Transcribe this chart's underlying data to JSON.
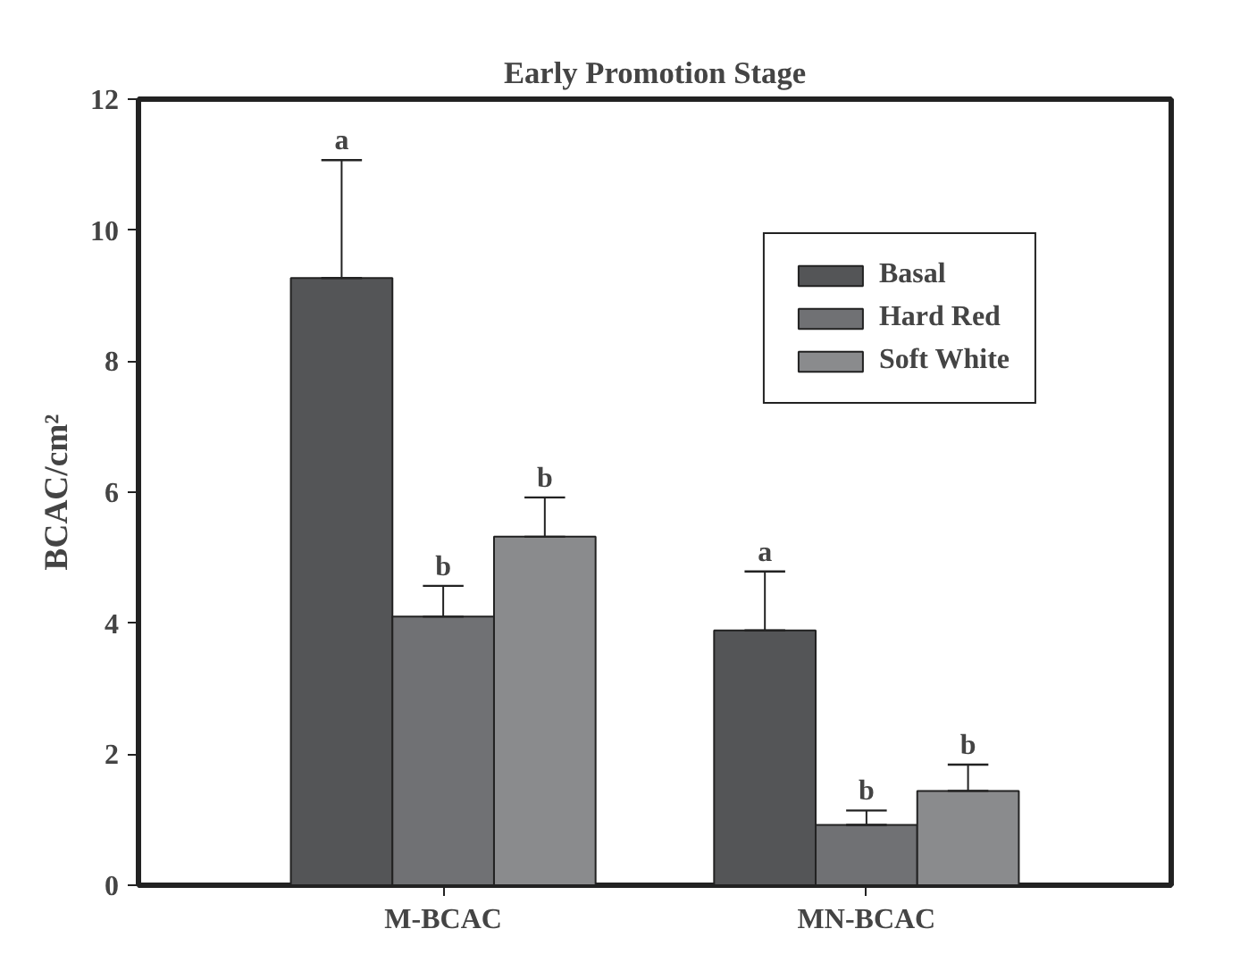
{
  "chart_data": {
    "type": "bar",
    "title": "Early Promotion Stage",
    "ylabel": "BCAC/cm²",
    "categories": [
      "M-BCAC",
      "MN-BCAC"
    ],
    "series": [
      {
        "name": "Basal",
        "color": "#545557",
        "values": [
          9.27,
          3.89
        ],
        "errors": [
          [
            9.27,
            11.07
          ],
          [
            3.89,
            4.79
          ]
        ]
      },
      {
        "name": "Hard Red",
        "color": "#707174",
        "values": [
          4.1,
          0.92
        ],
        "errors": [
          [
            4.1,
            4.57
          ],
          [
            0.92,
            1.14
          ]
        ]
      },
      {
        "name": "Soft White",
        "color": "#8a8b8d",
        "values": [
          5.32,
          1.44
        ],
        "errors": [
          [
            5.32,
            5.92
          ],
          [
            1.44,
            1.84
          ]
        ]
      }
    ],
    "annotations": [
      "a",
      "b",
      "b",
      "a",
      "b",
      "b"
    ],
    "ylim": [
      0,
      12
    ],
    "yticks": [
      0,
      2,
      4,
      6,
      8,
      10,
      12
    ],
    "grid": false,
    "legend": "top right"
  }
}
